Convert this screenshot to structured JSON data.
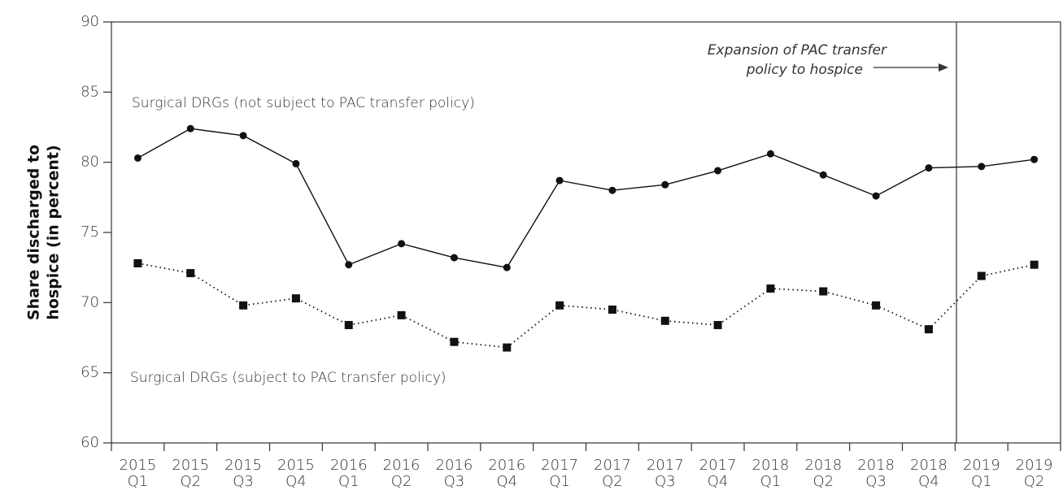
{
  "chart_data": {
    "type": "line",
    "ylabel": [
      "Share discharged to",
      "hospice (in percent)"
    ],
    "annotation": [
      "Expansion of PAC transfer",
      "policy to hospice"
    ],
    "categories": [
      "2015 Q1",
      "2015 Q2",
      "2015 Q3",
      "2015 Q4",
      "2016 Q1",
      "2016 Q2",
      "2016 Q3",
      "2016 Q4",
      "2017 Q1",
      "2017 Q2",
      "2017 Q3",
      "2017 Q4",
      "2018 Q1",
      "2018 Q2",
      "2018 Q3",
      "2018 Q4",
      "2019 Q1",
      "2019 Q2"
    ],
    "series": [
      {
        "name": "Surgical DRGs (not subject to PAC transfer policy)",
        "color": "#111111",
        "line_style": "solid",
        "marker": "circle",
        "values": [
          80.3,
          82.4,
          81.9,
          79.9,
          72.7,
          74.2,
          73.2,
          72.5,
          78.7,
          78.0,
          78.4,
          79.4,
          80.6,
          79.1,
          77.6,
          79.6,
          79.7,
          80.2
        ]
      },
      {
        "name": "Surgical DRGs (subject to PAC transfer policy)",
        "color": "#111111",
        "line_style": "dotted",
        "marker": "square",
        "values": [
          72.8,
          72.1,
          69.8,
          70.3,
          68.4,
          69.1,
          67.2,
          66.8,
          69.8,
          69.5,
          68.7,
          68.4,
          71.0,
          70.8,
          69.8,
          68.1,
          71.9,
          72.7
        ]
      }
    ],
    "ylim": [
      60,
      90
    ],
    "yticks": [
      60,
      65,
      70,
      75,
      80,
      85,
      90
    ],
    "grid": false
  }
}
